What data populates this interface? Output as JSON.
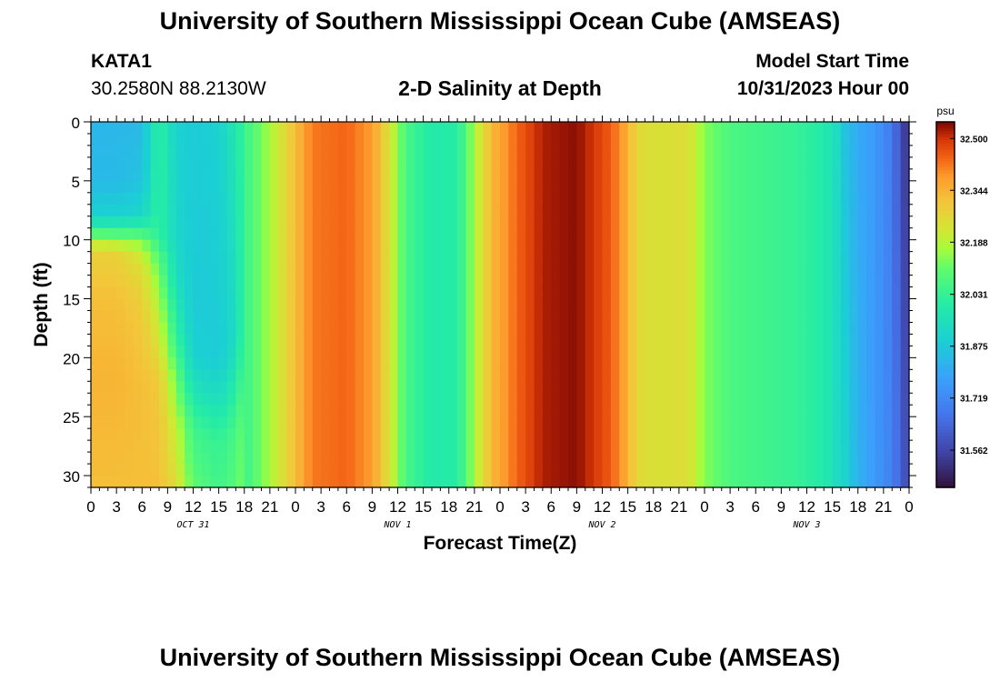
{
  "header": {
    "title": "University of Southern Mississippi Ocean Cube (AMSEAS)",
    "station": "KATA1",
    "coordinates": "30.2580N  88.2130W",
    "subtitle": "2-D Salinity at Depth",
    "start_label": "Model Start Time",
    "start_value": "10/31/2023 Hour 00"
  },
  "footer": {
    "title": "University of Southern Mississippi Ocean Cube (AMSEAS)"
  },
  "chart_data": {
    "type": "heatmap",
    "title": "2-D Salinity at Depth",
    "xlabel": "Forecast Time(Z)",
    "ylabel": "Depth (ft)",
    "x_range_hours": [
      0,
      96
    ],
    "y_range_ft": [
      0,
      31
    ],
    "y_inverted": true,
    "x_tick_labels": [
      "0",
      "3",
      "6",
      "9",
      "12",
      "15",
      "18",
      "21",
      "0",
      "3",
      "6",
      "9",
      "12",
      "15",
      "18",
      "21",
      "0",
      "3",
      "6",
      "9",
      "12",
      "15",
      "18",
      "21",
      "0",
      "3",
      "6",
      "9",
      "12",
      "15",
      "18",
      "21",
      "0"
    ],
    "x_date_labels": [
      {
        "label": "OCT 31",
        "hour": 12
      },
      {
        "label": "NOV 1",
        "hour": 36
      },
      {
        "label": "NOV 2",
        "hour": 60
      },
      {
        "label": "NOV 3",
        "hour": 84
      }
    ],
    "y_ticks": [
      0,
      5,
      10,
      15,
      20,
      25,
      30
    ],
    "colorbar": {
      "unit": "psu",
      "min": 31.45,
      "max": 32.55,
      "ticks": [
        "32.500",
        "32.344",
        "32.188",
        "32.031",
        "31.875",
        "31.719",
        "31.562"
      ]
    },
    "column_salinity": [
      {
        "hour": 0,
        "value": 32.32
      },
      {
        "hour": 9,
        "value": 32.33
      },
      {
        "hour": 13,
        "value": 31.9
      },
      {
        "hour": 17,
        "value": 32.0
      },
      {
        "hour": 21,
        "value": 32.17
      },
      {
        "hour": 24,
        "value": 32.32
      },
      {
        "hour": 26,
        "value": 32.42
      },
      {
        "hour": 30,
        "value": 32.44
      },
      {
        "hour": 33,
        "value": 32.38
      },
      {
        "hour": 35,
        "value": 32.24
      },
      {
        "hour": 37,
        "value": 32.06
      },
      {
        "hour": 40,
        "value": 31.99
      },
      {
        "hour": 43,
        "value": 32.0
      },
      {
        "hour": 45,
        "value": 32.17
      },
      {
        "hour": 47,
        "value": 32.33
      },
      {
        "hour": 50,
        "value": 32.44
      },
      {
        "hour": 53,
        "value": 32.52
      },
      {
        "hour": 57,
        "value": 32.54
      },
      {
        "hour": 61,
        "value": 32.45
      },
      {
        "hour": 63,
        "value": 32.35
      },
      {
        "hour": 64,
        "value": 32.26
      },
      {
        "hour": 66,
        "value": 32.24
      },
      {
        "hour": 70,
        "value": 32.25
      },
      {
        "hour": 72,
        "value": 32.14
      },
      {
        "hour": 75,
        "value": 32.07
      },
      {
        "hour": 79,
        "value": 32.05
      },
      {
        "hour": 83,
        "value": 32.03
      },
      {
        "hour": 86,
        "value": 31.99
      },
      {
        "hour": 89,
        "value": 31.88
      },
      {
        "hour": 93,
        "value": 31.74
      },
      {
        "hour": 96,
        "value": 31.5
      }
    ],
    "early_surface_profile": [
      {
        "hour": 0,
        "depths": [
          0,
          5,
          8,
          9,
          10,
          11,
          15,
          22,
          31
        ],
        "values": [
          31.83,
          31.84,
          31.9,
          32.02,
          32.16,
          32.28,
          32.32,
          32.34,
          32.32
        ]
      },
      {
        "hour": 3,
        "depths": [
          0,
          5,
          8,
          9,
          10,
          11,
          15,
          22,
          31
        ],
        "values": [
          31.83,
          31.84,
          31.9,
          32.02,
          32.14,
          32.28,
          32.32,
          32.34,
          32.32
        ]
      },
      {
        "hour": 6,
        "depths": [
          0,
          5,
          8,
          9,
          10,
          11,
          13,
          17,
          22,
          31
        ],
        "values": [
          31.84,
          31.86,
          31.92,
          32.02,
          32.12,
          32.2,
          32.26,
          32.3,
          32.32,
          32.32
        ]
      },
      {
        "hour": 8,
        "depths": [
          0,
          10,
          11,
          14,
          18,
          22,
          31
        ],
        "values": [
          32.02,
          32.02,
          32.07,
          32.15,
          32.22,
          32.3,
          32.32
        ]
      },
      {
        "hour": 10,
        "depths": [
          0,
          10,
          14,
          18,
          22,
          26,
          31
        ],
        "values": [
          31.9,
          31.92,
          31.95,
          32.02,
          32.12,
          32.2,
          32.25
        ]
      },
      {
        "hour": 12,
        "depths": [
          0,
          10,
          16,
          20,
          23,
          26,
          31
        ],
        "values": [
          31.88,
          31.88,
          31.88,
          31.9,
          31.97,
          32.05,
          32.1
        ]
      },
      {
        "hour": 15,
        "depths": [
          0,
          10,
          20,
          23,
          25,
          27,
          31
        ],
        "values": [
          31.9,
          31.89,
          31.88,
          31.93,
          31.98,
          32.03,
          32.05
        ]
      },
      {
        "hour": 17,
        "depths": [
          0,
          10,
          18,
          21,
          24,
          27,
          31
        ],
        "values": [
          31.98,
          31.95,
          31.93,
          31.97,
          32.03,
          32.07,
          32.09
        ]
      },
      {
        "hour": 18,
        "depths": [
          0,
          12,
          18,
          22,
          26,
          31
        ],
        "values": [
          32.04,
          32.04,
          32.05,
          32.08,
          32.12,
          32.14
        ]
      }
    ],
    "late_column_gradient": [
      {
        "hour": 88,
        "top": 31.88,
        "bottom": 31.94
      },
      {
        "hour": 90,
        "top": 31.8,
        "bottom": 31.82
      },
      {
        "hour": 92,
        "top": 31.76,
        "bottom": 31.76
      },
      {
        "hour": 94,
        "top": 31.68,
        "bottom": 31.7
      },
      {
        "hour": 96,
        "top": 31.5,
        "bottom": 31.56
      }
    ]
  }
}
